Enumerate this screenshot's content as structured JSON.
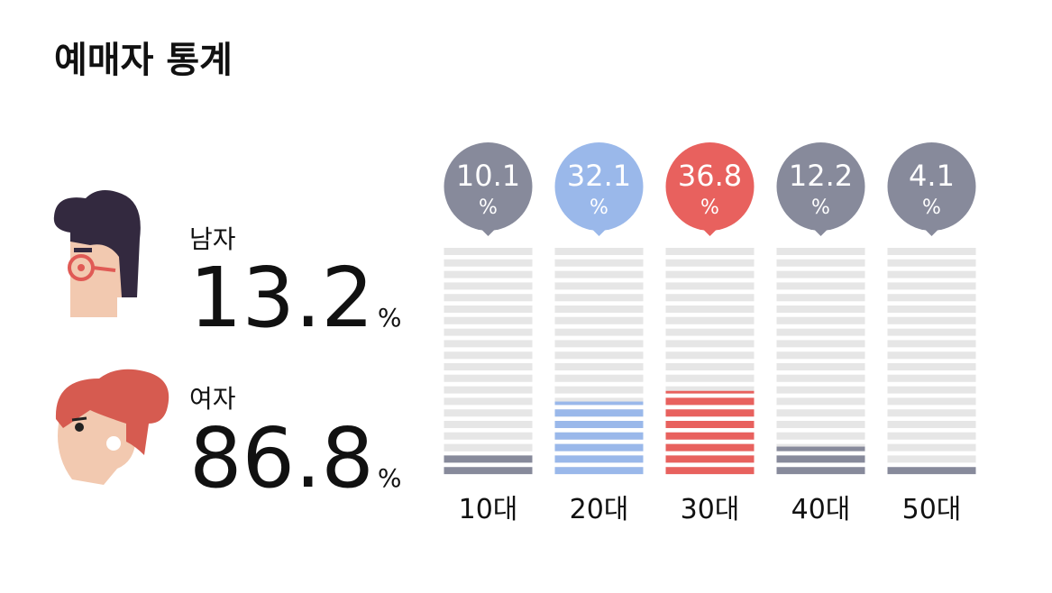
{
  "title": "예매자 통계",
  "gender": [
    {
      "label": "남자",
      "value": 13.2,
      "unit": "%"
    },
    {
      "label": "여자",
      "value": 86.8,
      "unit": "%"
    }
  ],
  "chart_data": {
    "type": "bar",
    "categories": [
      "10대",
      "20대",
      "30대",
      "40대",
      "50대"
    ],
    "values": [
      10.1,
      32.1,
      36.8,
      12.2,
      4.1
    ],
    "unit": "%",
    "colors": [
      "#878a9b",
      "#9ab8ea",
      "#e8615e",
      "#878a9b",
      "#878a9b"
    ],
    "ylim": [
      0,
      100
    ]
  }
}
